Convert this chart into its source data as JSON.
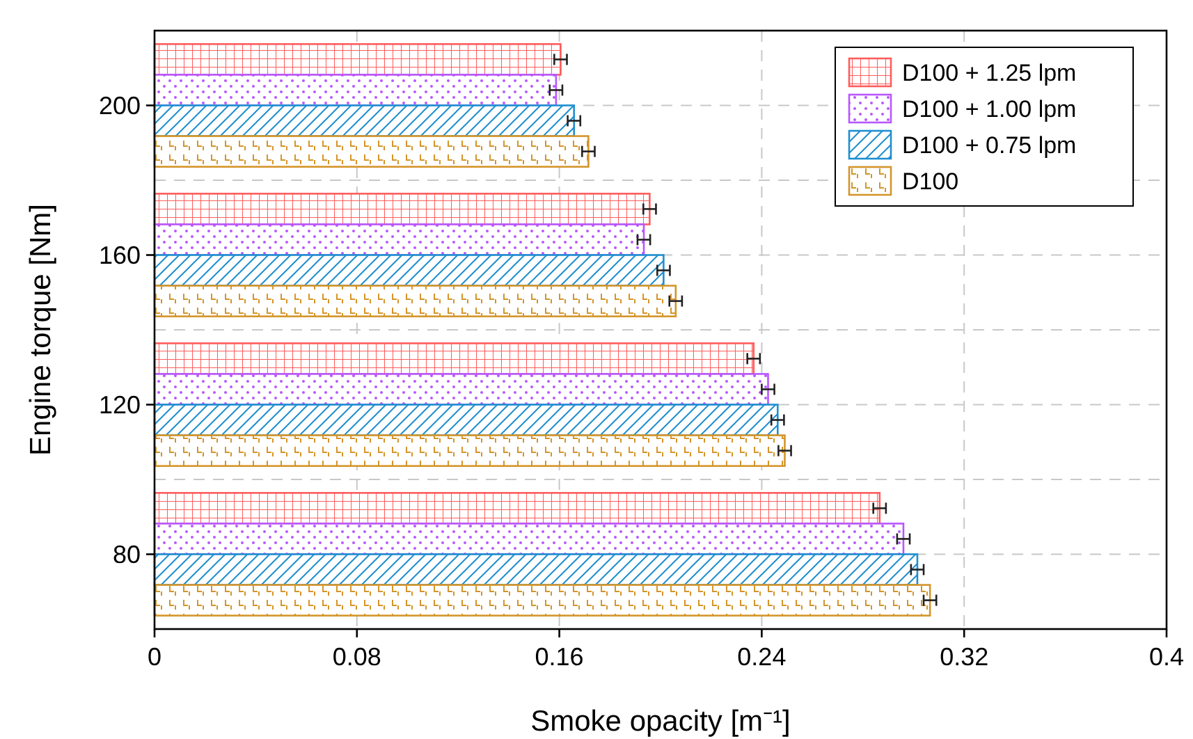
{
  "chart_data": {
    "type": "bar",
    "orientation": "horizontal",
    "xlabel": "Smoke opacity [m⁻¹]",
    "ylabel": "Engine torque [Nm]",
    "categories": [
      "200",
      "160",
      "120",
      "80"
    ],
    "series": [
      {
        "name": "D100 + 1.25 lpm",
        "color": "#ff5c5c",
        "values": [
          0.1605,
          0.1957,
          0.2368,
          0.2866
        ],
        "errors": [
          0.0025,
          0.0025,
          0.0025,
          0.0025
        ]
      },
      {
        "name": "D100 + 1.00 lpm",
        "color": "#b856ff",
        "values": [
          0.1587,
          0.1934,
          0.2425,
          0.296
        ],
        "errors": [
          0.0025,
          0.0025,
          0.0025,
          0.0025
        ]
      },
      {
        "name": "D100 + 0.75 lpm",
        "color": "#1e8fd0",
        "values": [
          0.1658,
          0.2012,
          0.2463,
          0.3015
        ],
        "errors": [
          0.0025,
          0.0025,
          0.0025,
          0.0025
        ]
      },
      {
        "name": "D100",
        "color": "#d4952a",
        "values": [
          0.1715,
          0.206,
          0.2491,
          0.3065
        ],
        "errors": [
          0.0025,
          0.0025,
          0.0025,
          0.0025
        ]
      }
    ],
    "xlim": [
      0,
      0.4
    ],
    "xticks": [
      0,
      0.08,
      0.16,
      0.24,
      0.32,
      0.4
    ],
    "grid": true,
    "legend": "top right"
  }
}
